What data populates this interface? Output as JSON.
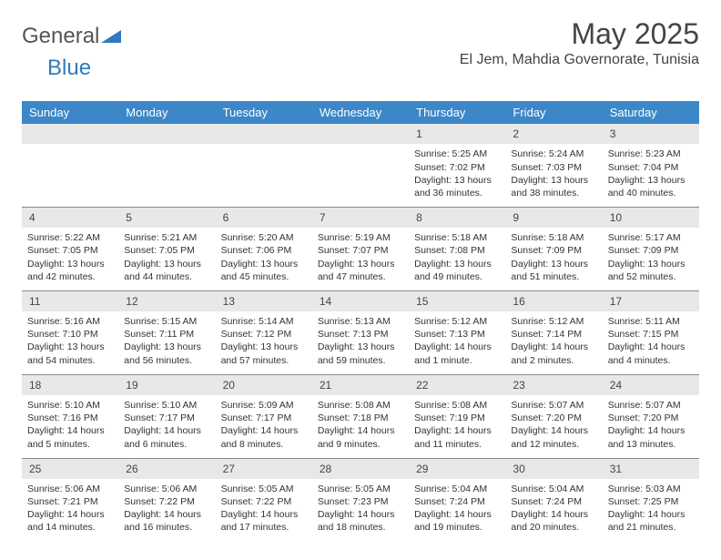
{
  "logo": {
    "general": "General",
    "blue": "Blue"
  },
  "title": "May 2025",
  "location": "El Jem, Mahdia Governorate, Tunisia",
  "weekdays": [
    "Sunday",
    "Monday",
    "Tuesday",
    "Wednesday",
    "Thursday",
    "Friday",
    "Saturday"
  ],
  "header_bg": "#3b87c8",
  "daynum_bg": "#e8e8e8",
  "weeks": [
    {
      "nums": [
        "",
        "",
        "",
        "",
        "1",
        "2",
        "3"
      ],
      "cells": [
        "",
        "",
        "",
        "",
        "Sunrise: 5:25 AM\nSunset: 7:02 PM\nDaylight: 13 hours and 36 minutes.",
        "Sunrise: 5:24 AM\nSunset: 7:03 PM\nDaylight: 13 hours and 38 minutes.",
        "Sunrise: 5:23 AM\nSunset: 7:04 PM\nDaylight: 13 hours and 40 minutes."
      ]
    },
    {
      "nums": [
        "4",
        "5",
        "6",
        "7",
        "8",
        "9",
        "10"
      ],
      "cells": [
        "Sunrise: 5:22 AM\nSunset: 7:05 PM\nDaylight: 13 hours and 42 minutes.",
        "Sunrise: 5:21 AM\nSunset: 7:05 PM\nDaylight: 13 hours and 44 minutes.",
        "Sunrise: 5:20 AM\nSunset: 7:06 PM\nDaylight: 13 hours and 45 minutes.",
        "Sunrise: 5:19 AM\nSunset: 7:07 PM\nDaylight: 13 hours and 47 minutes.",
        "Sunrise: 5:18 AM\nSunset: 7:08 PM\nDaylight: 13 hours and 49 minutes.",
        "Sunrise: 5:18 AM\nSunset: 7:09 PM\nDaylight: 13 hours and 51 minutes.",
        "Sunrise: 5:17 AM\nSunset: 7:09 PM\nDaylight: 13 hours and 52 minutes."
      ]
    },
    {
      "nums": [
        "11",
        "12",
        "13",
        "14",
        "15",
        "16",
        "17"
      ],
      "cells": [
        "Sunrise: 5:16 AM\nSunset: 7:10 PM\nDaylight: 13 hours and 54 minutes.",
        "Sunrise: 5:15 AM\nSunset: 7:11 PM\nDaylight: 13 hours and 56 minutes.",
        "Sunrise: 5:14 AM\nSunset: 7:12 PM\nDaylight: 13 hours and 57 minutes.",
        "Sunrise: 5:13 AM\nSunset: 7:13 PM\nDaylight: 13 hours and 59 minutes.",
        "Sunrise: 5:12 AM\nSunset: 7:13 PM\nDaylight: 14 hours and 1 minute.",
        "Sunrise: 5:12 AM\nSunset: 7:14 PM\nDaylight: 14 hours and 2 minutes.",
        "Sunrise: 5:11 AM\nSunset: 7:15 PM\nDaylight: 14 hours and 4 minutes."
      ]
    },
    {
      "nums": [
        "18",
        "19",
        "20",
        "21",
        "22",
        "23",
        "24"
      ],
      "cells": [
        "Sunrise: 5:10 AM\nSunset: 7:16 PM\nDaylight: 14 hours and 5 minutes.",
        "Sunrise: 5:10 AM\nSunset: 7:17 PM\nDaylight: 14 hours and 6 minutes.",
        "Sunrise: 5:09 AM\nSunset: 7:17 PM\nDaylight: 14 hours and 8 minutes.",
        "Sunrise: 5:08 AM\nSunset: 7:18 PM\nDaylight: 14 hours and 9 minutes.",
        "Sunrise: 5:08 AM\nSunset: 7:19 PM\nDaylight: 14 hours and 11 minutes.",
        "Sunrise: 5:07 AM\nSunset: 7:20 PM\nDaylight: 14 hours and 12 minutes.",
        "Sunrise: 5:07 AM\nSunset: 7:20 PM\nDaylight: 14 hours and 13 minutes."
      ]
    },
    {
      "nums": [
        "25",
        "26",
        "27",
        "28",
        "29",
        "30",
        "31"
      ],
      "cells": [
        "Sunrise: 5:06 AM\nSunset: 7:21 PM\nDaylight: 14 hours and 14 minutes.",
        "Sunrise: 5:06 AM\nSunset: 7:22 PM\nDaylight: 14 hours and 16 minutes.",
        "Sunrise: 5:05 AM\nSunset: 7:22 PM\nDaylight: 14 hours and 17 minutes.",
        "Sunrise: 5:05 AM\nSunset: 7:23 PM\nDaylight: 14 hours and 18 minutes.",
        "Sunrise: 5:04 AM\nSunset: 7:24 PM\nDaylight: 14 hours and 19 minutes.",
        "Sunrise: 5:04 AM\nSunset: 7:24 PM\nDaylight: 14 hours and 20 minutes.",
        "Sunrise: 5:03 AM\nSunset: 7:25 PM\nDaylight: 14 hours and 21 minutes."
      ]
    }
  ]
}
